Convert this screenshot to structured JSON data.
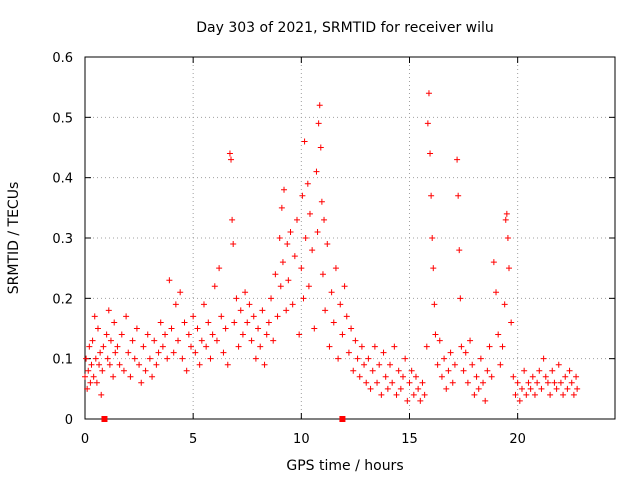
{
  "chart_data": {
    "type": "scatter",
    "title": "Day 303 of 2021, SRMTID for receiver wilu",
    "xlabel": "GPS time / hours",
    "ylabel": "SRMTID / TECUs",
    "xlim": [
      0,
      24.5
    ],
    "ylim": [
      0,
      0.6
    ],
    "xticks": [
      0,
      5,
      10,
      15,
      20
    ],
    "xtick_labels": [
      "0",
      "5",
      "10",
      "15",
      "20"
    ],
    "yticks": [
      0,
      0.1,
      0.2,
      0.3,
      0.4,
      0.5,
      0.6
    ],
    "ytick_labels": [
      "0",
      "0.1",
      "0.2",
      "0.3",
      "0.4",
      "0.5",
      "0.6"
    ],
    "grid": true,
    "marker": "+",
    "color": "#ff0000",
    "markers_on_axis": [
      0.9,
      11.9
    ],
    "series": [
      {
        "name": "SRMTID",
        "points": [
          [
            0.0,
            0.07
          ],
          [
            0.05,
            0.1
          ],
          [
            0.1,
            0.05
          ],
          [
            0.15,
            0.08
          ],
          [
            0.2,
            0.12
          ],
          [
            0.25,
            0.06
          ],
          [
            0.3,
            0.09
          ],
          [
            0.35,
            0.13
          ],
          [
            0.4,
            0.07
          ],
          [
            0.45,
            0.17
          ],
          [
            0.5,
            0.1
          ],
          [
            0.55,
            0.06
          ],
          [
            0.6,
            0.15
          ],
          [
            0.65,
            0.09
          ],
          [
            0.7,
            0.11
          ],
          [
            0.75,
            0.04
          ],
          [
            0.8,
            0.08
          ],
          [
            0.85,
            0.12
          ],
          [
            1.0,
            0.14
          ],
          [
            1.05,
            0.1
          ],
          [
            1.1,
            0.18
          ],
          [
            1.15,
            0.09
          ],
          [
            1.2,
            0.13
          ],
          [
            1.3,
            0.07
          ],
          [
            1.35,
            0.16
          ],
          [
            1.4,
            0.11
          ],
          [
            1.5,
            0.12
          ],
          [
            1.6,
            0.09
          ],
          [
            1.7,
            0.14
          ],
          [
            1.8,
            0.08
          ],
          [
            1.9,
            0.17
          ],
          [
            2.0,
            0.11
          ],
          [
            2.1,
            0.07
          ],
          [
            2.2,
            0.13
          ],
          [
            2.3,
            0.1
          ],
          [
            2.4,
            0.15
          ],
          [
            2.5,
            0.09
          ],
          [
            2.6,
            0.06
          ],
          [
            2.7,
            0.12
          ],
          [
            2.8,
            0.08
          ],
          [
            2.9,
            0.14
          ],
          [
            3.0,
            0.1
          ],
          [
            3.1,
            0.07
          ],
          [
            3.2,
            0.13
          ],
          [
            3.3,
            0.09
          ],
          [
            3.4,
            0.11
          ],
          [
            3.5,
            0.16
          ],
          [
            3.6,
            0.12
          ],
          [
            3.7,
            0.14
          ],
          [
            3.8,
            0.1
          ],
          [
            3.9,
            0.23
          ],
          [
            4.0,
            0.15
          ],
          [
            4.1,
            0.11
          ],
          [
            4.2,
            0.19
          ],
          [
            4.3,
            0.13
          ],
          [
            4.4,
            0.21
          ],
          [
            4.5,
            0.1
          ],
          [
            4.6,
            0.16
          ],
          [
            4.7,
            0.08
          ],
          [
            4.8,
            0.14
          ],
          [
            4.9,
            0.12
          ],
          [
            5.0,
            0.17
          ],
          [
            5.1,
            0.11
          ],
          [
            5.2,
            0.15
          ],
          [
            5.3,
            0.09
          ],
          [
            5.4,
            0.13
          ],
          [
            5.5,
            0.19
          ],
          [
            5.6,
            0.12
          ],
          [
            5.7,
            0.16
          ],
          [
            5.8,
            0.1
          ],
          [
            5.9,
            0.14
          ],
          [
            6.0,
            0.22
          ],
          [
            6.1,
            0.13
          ],
          [
            6.2,
            0.25
          ],
          [
            6.3,
            0.17
          ],
          [
            6.4,
            0.11
          ],
          [
            6.5,
            0.15
          ],
          [
            6.6,
            0.09
          ],
          [
            6.7,
            0.44
          ],
          [
            6.75,
            0.43
          ],
          [
            6.8,
            0.33
          ],
          [
            6.85,
            0.29
          ],
          [
            6.9,
            0.16
          ],
          [
            7.0,
            0.2
          ],
          [
            7.1,
            0.12
          ],
          [
            7.2,
            0.18
          ],
          [
            7.3,
            0.14
          ],
          [
            7.4,
            0.21
          ],
          [
            7.5,
            0.16
          ],
          [
            7.6,
            0.19
          ],
          [
            7.7,
            0.13
          ],
          [
            7.8,
            0.17
          ],
          [
            7.9,
            0.1
          ],
          [
            8.0,
            0.15
          ],
          [
            8.1,
            0.12
          ],
          [
            8.2,
            0.18
          ],
          [
            8.3,
            0.09
          ],
          [
            8.4,
            0.14
          ],
          [
            8.5,
            0.16
          ],
          [
            8.6,
            0.2
          ],
          [
            8.7,
            0.13
          ],
          [
            8.8,
            0.24
          ],
          [
            8.9,
            0.17
          ],
          [
            9.0,
            0.3
          ],
          [
            9.05,
            0.22
          ],
          [
            9.1,
            0.35
          ],
          [
            9.15,
            0.26
          ],
          [
            9.2,
            0.38
          ],
          [
            9.3,
            0.18
          ],
          [
            9.35,
            0.29
          ],
          [
            9.4,
            0.23
          ],
          [
            9.5,
            0.31
          ],
          [
            9.6,
            0.19
          ],
          [
            9.7,
            0.27
          ],
          [
            9.8,
            0.33
          ],
          [
            9.9,
            0.14
          ],
          [
            10.0,
            0.25
          ],
          [
            10.05,
            0.37
          ],
          [
            10.1,
            0.2
          ],
          [
            10.15,
            0.46
          ],
          [
            10.2,
            0.3
          ],
          [
            10.3,
            0.39
          ],
          [
            10.35,
            0.22
          ],
          [
            10.4,
            0.34
          ],
          [
            10.5,
            0.28
          ],
          [
            10.6,
            0.15
          ],
          [
            10.7,
            0.41
          ],
          [
            10.75,
            0.31
          ],
          [
            10.8,
            0.49
          ],
          [
            10.85,
            0.52
          ],
          [
            10.9,
            0.45
          ],
          [
            10.95,
            0.36
          ],
          [
            11.0,
            0.24
          ],
          [
            11.05,
            0.33
          ],
          [
            11.1,
            0.18
          ],
          [
            11.2,
            0.29
          ],
          [
            11.3,
            0.12
          ],
          [
            11.4,
            0.21
          ],
          [
            11.5,
            0.16
          ],
          [
            11.6,
            0.25
          ],
          [
            11.7,
            0.1
          ],
          [
            11.8,
            0.19
          ],
          [
            11.9,
            0.14
          ],
          [
            12.0,
            0.22
          ],
          [
            12.1,
            0.17
          ],
          [
            12.2,
            0.11
          ],
          [
            12.3,
            0.15
          ],
          [
            12.4,
            0.08
          ],
          [
            12.5,
            0.13
          ],
          [
            12.6,
            0.1
          ],
          [
            12.7,
            0.07
          ],
          [
            12.8,
            0.12
          ],
          [
            12.9,
            0.09
          ],
          [
            13.0,
            0.06
          ],
          [
            13.1,
            0.1
          ],
          [
            13.2,
            0.05
          ],
          [
            13.3,
            0.08
          ],
          [
            13.4,
            0.12
          ],
          [
            13.5,
            0.06
          ],
          [
            13.6,
            0.09
          ],
          [
            13.7,
            0.04
          ],
          [
            13.8,
            0.11
          ],
          [
            13.9,
            0.07
          ],
          [
            14.0,
            0.05
          ],
          [
            14.1,
            0.09
          ],
          [
            14.2,
            0.06
          ],
          [
            14.3,
            0.12
          ],
          [
            14.4,
            0.04
          ],
          [
            14.5,
            0.08
          ],
          [
            14.6,
            0.05
          ],
          [
            14.7,
            0.07
          ],
          [
            14.8,
            0.1
          ],
          [
            14.9,
            0.03
          ],
          [
            15.0,
            0.06
          ],
          [
            15.1,
            0.08
          ],
          [
            15.2,
            0.04
          ],
          [
            15.3,
            0.07
          ],
          [
            15.4,
            0.05
          ],
          [
            15.5,
            0.03
          ],
          [
            15.6,
            0.06
          ],
          [
            15.7,
            0.04
          ],
          [
            15.8,
            0.12
          ],
          [
            15.85,
            0.49
          ],
          [
            15.9,
            0.54
          ],
          [
            15.95,
            0.44
          ],
          [
            16.0,
            0.37
          ],
          [
            16.05,
            0.3
          ],
          [
            16.1,
            0.25
          ],
          [
            16.15,
            0.19
          ],
          [
            16.2,
            0.14
          ],
          [
            16.3,
            0.09
          ],
          [
            16.4,
            0.13
          ],
          [
            16.5,
            0.07
          ],
          [
            16.6,
            0.1
          ],
          [
            16.7,
            0.05
          ],
          [
            16.8,
            0.08
          ],
          [
            16.9,
            0.11
          ],
          [
            17.0,
            0.06
          ],
          [
            17.1,
            0.09
          ],
          [
            17.2,
            0.43
          ],
          [
            17.25,
            0.37
          ],
          [
            17.3,
            0.28
          ],
          [
            17.35,
            0.2
          ],
          [
            17.4,
            0.12
          ],
          [
            17.5,
            0.08
          ],
          [
            17.6,
            0.11
          ],
          [
            17.7,
            0.06
          ],
          [
            17.8,
            0.13
          ],
          [
            17.9,
            0.09
          ],
          [
            18.0,
            0.04
          ],
          [
            18.1,
            0.07
          ],
          [
            18.2,
            0.05
          ],
          [
            18.3,
            0.1
          ],
          [
            18.4,
            0.06
          ],
          [
            18.5,
            0.03
          ],
          [
            18.6,
            0.08
          ],
          [
            18.7,
            0.12
          ],
          [
            18.8,
            0.07
          ],
          [
            18.9,
            0.26
          ],
          [
            19.0,
            0.21
          ],
          [
            19.1,
            0.14
          ],
          [
            19.2,
            0.09
          ],
          [
            19.3,
            0.12
          ],
          [
            19.4,
            0.19
          ],
          [
            19.45,
            0.33
          ],
          [
            19.5,
            0.34
          ],
          [
            19.55,
            0.3
          ],
          [
            19.6,
            0.25
          ],
          [
            19.7,
            0.16
          ],
          [
            19.8,
            0.07
          ],
          [
            19.9,
            0.04
          ],
          [
            20.0,
            0.06
          ],
          [
            20.1,
            0.03
          ],
          [
            20.2,
            0.05
          ],
          [
            20.3,
            0.08
          ],
          [
            20.4,
            0.04
          ],
          [
            20.5,
            0.06
          ],
          [
            20.6,
            0.05
          ],
          [
            20.7,
            0.07
          ],
          [
            20.8,
            0.04
          ],
          [
            20.9,
            0.06
          ],
          [
            21.0,
            0.08
          ],
          [
            21.1,
            0.05
          ],
          [
            21.2,
            0.1
          ],
          [
            21.3,
            0.07
          ],
          [
            21.4,
            0.06
          ],
          [
            21.5,
            0.04
          ],
          [
            21.6,
            0.08
          ],
          [
            21.7,
            0.06
          ],
          [
            21.8,
            0.05
          ],
          [
            21.9,
            0.09
          ],
          [
            22.0,
            0.06
          ],
          [
            22.1,
            0.04
          ],
          [
            22.2,
            0.07
          ],
          [
            22.3,
            0.05
          ],
          [
            22.4,
            0.08
          ],
          [
            22.5,
            0.06
          ],
          [
            22.6,
            0.04
          ],
          [
            22.7,
            0.07
          ],
          [
            22.75,
            0.05
          ]
        ]
      }
    ]
  }
}
